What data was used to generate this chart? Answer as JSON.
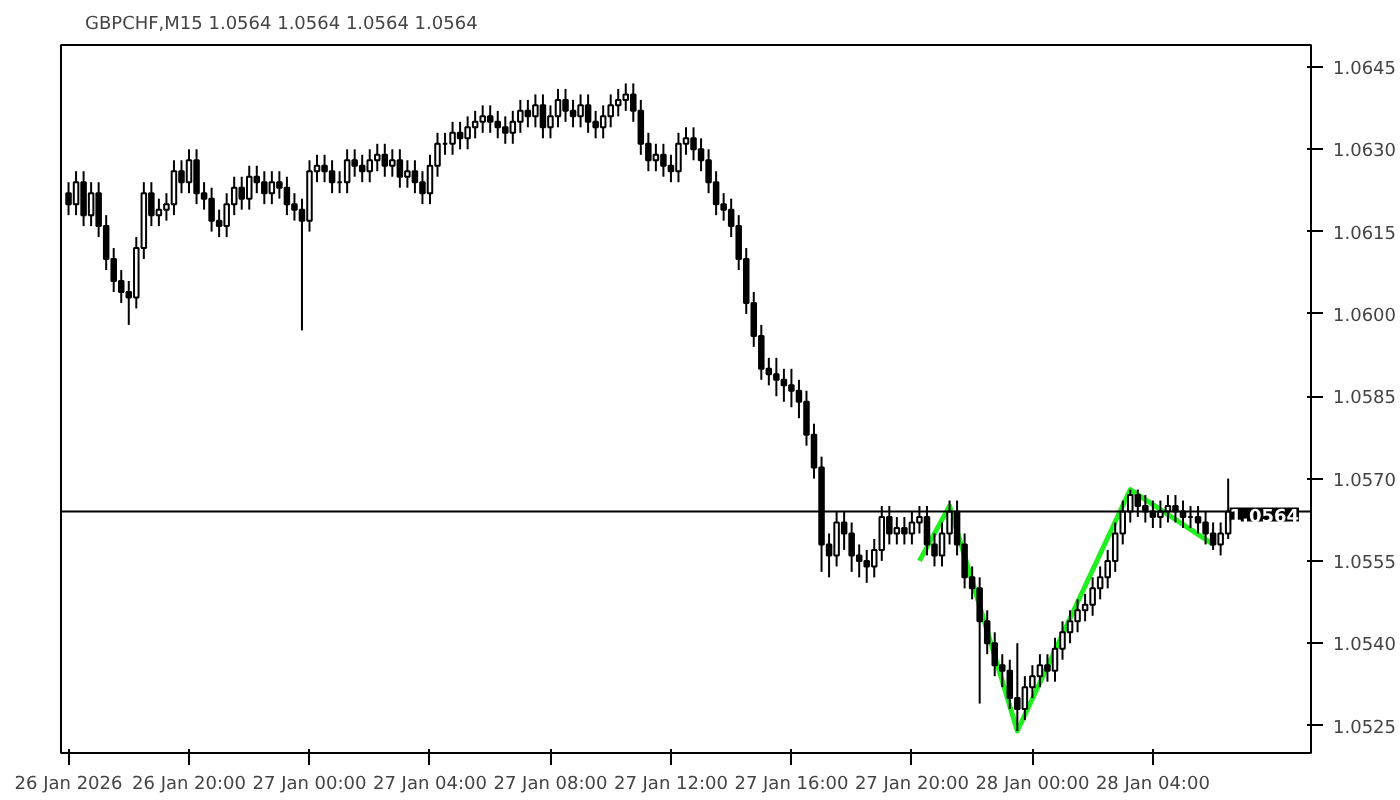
{
  "chart_data": {
    "type": "candlestick",
    "title": "GBPCHF,M15  1.0564 1.0564 1.0564 1.0564",
    "color": "#000000",
    "x": [
      "2026-01-26T16:00",
      "2026-01-26T16:15",
      "2026-01-26T16:30",
      "2026-01-26T16:45",
      "2026-01-26T17:00",
      "2026-01-26T17:15",
      "2026-01-26T17:30",
      "2026-01-26T17:45",
      "2026-01-26T18:00",
      "2026-01-26T18:15",
      "2026-01-26T18:30",
      "2026-01-26T18:45",
      "2026-01-26T19:00",
      "2026-01-26T19:15",
      "2026-01-26T19:30",
      "2026-01-26T19:45",
      "2026-01-26T20:00",
      "2026-01-26T20:15",
      "2026-01-26T20:30",
      "2026-01-26T20:45",
      "2026-01-26T21:00",
      "2026-01-26T21:15",
      "2026-01-26T21:30",
      "2026-01-26T21:45",
      "2026-01-26T22:00",
      "2026-01-26T22:15",
      "2026-01-26T22:30",
      "2026-01-26T22:45",
      "2026-01-26T23:00",
      "2026-01-26T23:15",
      "2026-01-26T23:30",
      "2026-01-26T23:45",
      "2026-01-27T00:00",
      "2026-01-27T00:15",
      "2026-01-27T00:30",
      "2026-01-27T00:45",
      "2026-01-27T01:00",
      "2026-01-27T01:15",
      "2026-01-27T01:30",
      "2026-01-27T01:45",
      "2026-01-27T02:00",
      "2026-01-27T02:15",
      "2026-01-27T02:30",
      "2026-01-27T02:45",
      "2026-01-27T03:00",
      "2026-01-27T03:15",
      "2026-01-27T03:30",
      "2026-01-27T03:45",
      "2026-01-27T04:00",
      "2026-01-27T04:15",
      "2026-01-27T04:30",
      "2026-01-27T04:45",
      "2026-01-27T05:00",
      "2026-01-27T05:15",
      "2026-01-27T05:30",
      "2026-01-27T05:45",
      "2026-01-27T06:00",
      "2026-01-27T06:15",
      "2026-01-27T06:30",
      "2026-01-27T06:45",
      "2026-01-27T07:00",
      "2026-01-27T07:15",
      "2026-01-27T07:30",
      "2026-01-27T07:45",
      "2026-01-27T08:00",
      "2026-01-27T08:15",
      "2026-01-27T08:30",
      "2026-01-27T08:45",
      "2026-01-27T09:00",
      "2026-01-27T09:15",
      "2026-01-27T09:30",
      "2026-01-27T09:45",
      "2026-01-27T10:00",
      "2026-01-27T10:15",
      "2026-01-27T10:30",
      "2026-01-27T10:45",
      "2026-01-27T11:00",
      "2026-01-27T11:15",
      "2026-01-27T11:30",
      "2026-01-27T11:45",
      "2026-01-27T12:00",
      "2026-01-27T12:15",
      "2026-01-27T12:30",
      "2026-01-27T12:45",
      "2026-01-27T13:00",
      "2026-01-27T13:15",
      "2026-01-27T13:30",
      "2026-01-27T13:45",
      "2026-01-27T14:00",
      "2026-01-27T14:15",
      "2026-01-27T14:30",
      "2026-01-27T14:45",
      "2026-01-27T15:00",
      "2026-01-27T15:15",
      "2026-01-27T15:30",
      "2026-01-27T15:45",
      "2026-01-27T16:00",
      "2026-01-27T16:15",
      "2026-01-27T16:30",
      "2026-01-27T16:45",
      "2026-01-27T17:00",
      "2026-01-27T17:15",
      "2026-01-27T17:30",
      "2026-01-27T17:45",
      "2026-01-27T18:00",
      "2026-01-27T18:15",
      "2026-01-27T18:30",
      "2026-01-27T18:45",
      "2026-01-27T19:00",
      "2026-01-27T19:15",
      "2026-01-27T19:30",
      "2026-01-27T19:45",
      "2026-01-27T20:00",
      "2026-01-27T20:15",
      "2026-01-27T20:30",
      "2026-01-27T20:45",
      "2026-01-27T21:00",
      "2026-01-27T21:15",
      "2026-01-27T21:30",
      "2026-01-27T21:45",
      "2026-01-27T22:00",
      "2026-01-27T22:15",
      "2026-01-27T22:30",
      "2026-01-27T22:45",
      "2026-01-27T23:00",
      "2026-01-27T23:15",
      "2026-01-27T23:30",
      "2026-01-27T23:45",
      "2026-01-28T00:00",
      "2026-01-28T00:15",
      "2026-01-28T00:30",
      "2026-01-28T00:45",
      "2026-01-28T01:00",
      "2026-01-28T01:15",
      "2026-01-28T01:30",
      "2026-01-28T01:45",
      "2026-01-28T02:00",
      "2026-01-28T02:15",
      "2026-01-28T02:30",
      "2026-01-28T02:45",
      "2026-01-28T03:00",
      "2026-01-28T03:15",
      "2026-01-28T03:30",
      "2026-01-28T03:45",
      "2026-01-28T04:00",
      "2026-01-28T04:15",
      "2026-01-28T04:30",
      "2026-01-28T04:45",
      "2026-01-28T05:00",
      "2026-01-28T05:15",
      "2026-01-28T05:30",
      "2026-01-28T05:45",
      "2026-01-28T06:00",
      "2026-01-28T06:15",
      "2026-01-28T06:30"
    ],
    "ohlc": [
      [
        1.0622,
        1.0624,
        1.0618,
        1.062
      ],
      [
        1.062,
        1.0626,
        1.0618,
        1.0624
      ],
      [
        1.0624,
        1.0626,
        1.0616,
        1.0618
      ],
      [
        1.0618,
        1.0624,
        1.0616,
        1.0622
      ],
      [
        1.0622,
        1.0624,
        1.0614,
        1.0616
      ],
      [
        1.0616,
        1.0618,
        1.0608,
        1.061
      ],
      [
        1.061,
        1.0612,
        1.0604,
        1.0606
      ],
      [
        1.0606,
        1.0608,
        1.0602,
        1.0604
      ],
      [
        1.0604,
        1.0606,
        1.0598,
        1.0603
      ],
      [
        1.0603,
        1.0614,
        1.0601,
        1.0612
      ],
      [
        1.0612,
        1.0624,
        1.061,
        1.0622
      ],
      [
        1.0622,
        1.0624,
        1.0616,
        1.0618
      ],
      [
        1.0618,
        1.0621,
        1.0616,
        1.0619
      ],
      [
        1.0619,
        1.0622,
        1.0617,
        1.062
      ],
      [
        1.062,
        1.0628,
        1.0618,
        1.0626
      ],
      [
        1.0626,
        1.0628,
        1.0622,
        1.0624
      ],
      [
        1.0624,
        1.063,
        1.0622,
        1.0628
      ],
      [
        1.0628,
        1.063,
        1.062,
        1.0622
      ],
      [
        1.0622,
        1.0624,
        1.0619,
        1.0621
      ],
      [
        1.0621,
        1.0623,
        1.0615,
        1.0617
      ],
      [
        1.0617,
        1.0619,
        1.0614,
        1.0616
      ],
      [
        1.0616,
        1.0622,
        1.0614,
        1.062
      ],
      [
        1.062,
        1.0625,
        1.0618,
        1.0623
      ],
      [
        1.0623,
        1.0625,
        1.0619,
        1.0621
      ],
      [
        1.0621,
        1.0627,
        1.0619,
        1.0625
      ],
      [
        1.0625,
        1.0627,
        1.0622,
        1.0624
      ],
      [
        1.0624,
        1.0626,
        1.062,
        1.0622
      ],
      [
        1.0622,
        1.0626,
        1.062,
        1.0624
      ],
      [
        1.0624,
        1.0626,
        1.0621,
        1.0623
      ],
      [
        1.0623,
        1.0625,
        1.0618,
        1.062
      ],
      [
        1.062,
        1.0622,
        1.0617,
        1.0619
      ],
      [
        1.0619,
        1.0621,
        1.0597,
        1.0617
      ],
      [
        1.0617,
        1.0628,
        1.0615,
        1.0626
      ],
      [
        1.0626,
        1.0629,
        1.0624,
        1.0627
      ],
      [
        1.0627,
        1.0629,
        1.0624,
        1.0626
      ],
      [
        1.0626,
        1.0628,
        1.0622,
        1.0624
      ],
      [
        1.0624,
        1.0626,
        1.0622,
        1.0624
      ],
      [
        1.0624,
        1.063,
        1.0622,
        1.0628
      ],
      [
        1.0628,
        1.063,
        1.0625,
        1.0627
      ],
      [
        1.0627,
        1.0629,
        1.0624,
        1.0626
      ],
      [
        1.0626,
        1.063,
        1.0624,
        1.0628
      ],
      [
        1.0628,
        1.0631,
        1.0626,
        1.0629
      ],
      [
        1.0629,
        1.0631,
        1.0625,
        1.0627
      ],
      [
        1.0627,
        1.063,
        1.0625,
        1.0628
      ],
      [
        1.0628,
        1.063,
        1.0623,
        1.0625
      ],
      [
        1.0625,
        1.0628,
        1.0623,
        1.0626
      ],
      [
        1.0626,
        1.0628,
        1.0622,
        1.0624
      ],
      [
        1.0624,
        1.0626,
        1.062,
        1.0622
      ],
      [
        1.0622,
        1.0629,
        1.062,
        1.0627
      ],
      [
        1.0627,
        1.0633,
        1.0625,
        1.0631
      ],
      [
        1.0631,
        1.0633,
        1.0629,
        1.0631
      ],
      [
        1.0631,
        1.0635,
        1.0629,
        1.0633
      ],
      [
        1.0633,
        1.0635,
        1.063,
        1.0632
      ],
      [
        1.0632,
        1.0636,
        1.063,
        1.0634
      ],
      [
        1.0634,
        1.0637,
        1.0632,
        1.0635
      ],
      [
        1.0635,
        1.0638,
        1.0633,
        1.0636
      ],
      [
        1.0636,
        1.0638,
        1.0633,
        1.0635
      ],
      [
        1.0635,
        1.0637,
        1.0632,
        1.0634
      ],
      [
        1.0634,
        1.0636,
        1.0631,
        1.0633
      ],
      [
        1.0633,
        1.0637,
        1.0631,
        1.0635
      ],
      [
        1.0635,
        1.0639,
        1.0633,
        1.0637
      ],
      [
        1.0637,
        1.0639,
        1.0634,
        1.0636
      ],
      [
        1.0636,
        1.064,
        1.0634,
        1.0638
      ],
      [
        1.0638,
        1.064,
        1.0632,
        1.0634
      ],
      [
        1.0634,
        1.0638,
        1.0632,
        1.0636
      ],
      [
        1.0636,
        1.0641,
        1.0634,
        1.0639
      ],
      [
        1.0639,
        1.0641,
        1.0635,
        1.0637
      ],
      [
        1.0637,
        1.0639,
        1.0634,
        1.0636
      ],
      [
        1.0636,
        1.064,
        1.0634,
        1.0638
      ],
      [
        1.0638,
        1.064,
        1.0633,
        1.0635
      ],
      [
        1.0635,
        1.0637,
        1.0632,
        1.0634
      ],
      [
        1.0634,
        1.0638,
        1.0632,
        1.0636
      ],
      [
        1.0636,
        1.064,
        1.0634,
        1.0638
      ],
      [
        1.0638,
        1.0641,
        1.0636,
        1.0639
      ],
      [
        1.0639,
        1.0642,
        1.0637,
        1.064
      ],
      [
        1.064,
        1.0642,
        1.0635,
        1.0637
      ],
      [
        1.0637,
        1.0639,
        1.0629,
        1.0631
      ],
      [
        1.0631,
        1.0633,
        1.0626,
        1.0628
      ],
      [
        1.0628,
        1.0631,
        1.0626,
        1.0629
      ],
      [
        1.0629,
        1.0631,
        1.0625,
        1.0627
      ],
      [
        1.0627,
        1.0629,
        1.0624,
        1.0626
      ],
      [
        1.0626,
        1.0633,
        1.0624,
        1.0631
      ],
      [
        1.0631,
        1.0634,
        1.0629,
        1.0632
      ],
      [
        1.0632,
        1.0634,
        1.0628,
        1.063
      ],
      [
        1.063,
        1.0632,
        1.0626,
        1.0628
      ],
      [
        1.0628,
        1.063,
        1.0622,
        1.0624
      ],
      [
        1.0624,
        1.0626,
        1.0618,
        1.062
      ],
      [
        1.062,
        1.0622,
        1.0617,
        1.0619
      ],
      [
        1.0619,
        1.0621,
        1.0614,
        1.0616
      ],
      [
        1.0616,
        1.0618,
        1.0608,
        1.061
      ],
      [
        1.061,
        1.0612,
        1.06,
        1.0602
      ],
      [
        1.0602,
        1.0604,
        1.0594,
        1.0596
      ],
      [
        1.0596,
        1.0598,
        1.0588,
        1.059
      ],
      [
        1.059,
        1.0592,
        1.0587,
        1.0589
      ],
      [
        1.0589,
        1.0592,
        1.0585,
        1.0588
      ],
      [
        1.0588,
        1.059,
        1.0584,
        1.0587
      ],
      [
        1.0587,
        1.059,
        1.0583,
        1.0586
      ],
      [
        1.0586,
        1.0588,
        1.0581,
        1.0584
      ],
      [
        1.0584,
        1.0586,
        1.0576,
        1.0578
      ],
      [
        1.0578,
        1.058,
        1.057,
        1.0572
      ],
      [
        1.0572,
        1.0574,
        1.0553,
        1.0558
      ],
      [
        1.0558,
        1.056,
        1.0552,
        1.0556
      ],
      [
        1.0556,
        1.0564,
        1.0554,
        1.0562
      ],
      [
        1.0562,
        1.0564,
        1.0557,
        1.056
      ],
      [
        1.056,
        1.0562,
        1.0553,
        1.0556
      ],
      [
        1.0556,
        1.0558,
        1.0552,
        1.0555
      ],
      [
        1.0555,
        1.0557,
        1.0551,
        1.0554
      ],
      [
        1.0554,
        1.0559,
        1.0552,
        1.0557
      ],
      [
        1.0557,
        1.0565,
        1.0555,
        1.0563
      ],
      [
        1.0563,
        1.0565,
        1.0558,
        1.056
      ],
      [
        1.056,
        1.0563,
        1.0558,
        1.0561
      ],
      [
        1.0561,
        1.0563,
        1.0558,
        1.056
      ],
      [
        1.056,
        1.0564,
        1.0558,
        1.0562
      ],
      [
        1.0562,
        1.0565,
        1.056,
        1.0563
      ],
      [
        1.0563,
        1.0565,
        1.0556,
        1.0558
      ],
      [
        1.0558,
        1.056,
        1.0554,
        1.0556
      ],
      [
        1.0556,
        1.0562,
        1.0554,
        1.056
      ],
      [
        1.056,
        1.0566,
        1.0558,
        1.0564
      ],
      [
        1.0564,
        1.0566,
        1.0556,
        1.0558
      ],
      [
        1.0558,
        1.056,
        1.055,
        1.0552
      ],
      [
        1.0552,
        1.0554,
        1.0548,
        1.055
      ],
      [
        1.055,
        1.0552,
        1.0529,
        1.0544
      ],
      [
        1.0544,
        1.0546,
        1.0538,
        1.054
      ],
      [
        1.054,
        1.0542,
        1.0534,
        1.0536
      ],
      [
        1.0536,
        1.0538,
        1.0532,
        1.0535
      ],
      [
        1.0535,
        1.0537,
        1.0528,
        1.053
      ],
      [
        1.053,
        1.054,
        1.0524,
        1.0528
      ],
      [
        1.0528,
        1.0534,
        1.0526,
        1.0532
      ],
      [
        1.0532,
        1.0536,
        1.053,
        1.0534
      ],
      [
        1.0534,
        1.0538,
        1.0532,
        1.0536
      ],
      [
        1.0536,
        1.0538,
        1.0533,
        1.0535
      ],
      [
        1.0535,
        1.0541,
        1.0533,
        1.0539
      ],
      [
        1.0539,
        1.0544,
        1.0537,
        1.0542
      ],
      [
        1.0542,
        1.0546,
        1.054,
        1.0544
      ],
      [
        1.0544,
        1.0548,
        1.0542,
        1.0546
      ],
      [
        1.0546,
        1.0549,
        1.0544,
        1.0547
      ],
      [
        1.0547,
        1.0552,
        1.0545,
        1.055
      ],
      [
        1.055,
        1.0554,
        1.0548,
        1.0552
      ],
      [
        1.0552,
        1.0557,
        1.055,
        1.0555
      ],
      [
        1.0555,
        1.0562,
        1.0553,
        1.056
      ],
      [
        1.056,
        1.0566,
        1.0558,
        1.0564
      ],
      [
        1.0564,
        1.0568,
        1.0562,
        1.0567
      ],
      [
        1.0567,
        1.0568,
        1.0563,
        1.0565
      ],
      [
        1.0565,
        1.0567,
        1.0562,
        1.0564
      ],
      [
        1.0564,
        1.0566,
        1.0561,
        1.0563
      ],
      [
        1.0563,
        1.0566,
        1.0561,
        1.0564
      ],
      [
        1.0564,
        1.0567,
        1.0562,
        1.0565
      ],
      [
        1.0565,
        1.0567,
        1.0562,
        1.0564
      ],
      [
        1.0564,
        1.0566,
        1.0561,
        1.0563
      ],
      [
        1.0563,
        1.0565,
        1.0561,
        1.0563
      ],
      [
        1.0563,
        1.0565,
        1.056,
        1.0562
      ],
      [
        1.0562,
        1.0564,
        1.0558,
        1.056
      ],
      [
        1.056,
        1.0562,
        1.0557,
        1.0558
      ],
      [
        1.0558,
        1.0562,
        1.0556,
        1.056
      ],
      [
        1.056,
        1.057,
        1.0559,
        1.0564
      ]
    ],
    "series": [
      {
        "type": "line",
        "color": "#22ee22",
        "x": [
          "2026-01-27T20:15",
          "2026-01-27T21:15",
          "2026-01-27T23:30",
          "2026-01-28T03:15",
          "2026-01-28T06:00"
        ],
        "values": [
          1.0555,
          1.0565,
          1.0524,
          1.0568,
          1.0558
        ]
      }
    ],
    "ref_lines": [
      {
        "axis": "y",
        "value": 1.0564,
        "label": "1.0564",
        "color": "#000000"
      }
    ],
    "xlim": [
      "2026-01-26T15:45",
      "2026-01-28T09:15"
    ],
    "xticks": [
      {
        "value": "2026-01-26T16:00",
        "label": "26 Jan 2026"
      },
      {
        "value": "2026-01-26T20:00",
        "label": "26 Jan 20:00"
      },
      {
        "value": "2026-01-27T00:00",
        "label": "27 Jan 00:00"
      },
      {
        "value": "2026-01-27T04:00",
        "label": "27 Jan 04:00"
      },
      {
        "value": "2026-01-27T08:00",
        "label": "27 Jan 08:00"
      },
      {
        "value": "2026-01-27T12:00",
        "label": "27 Jan 12:00"
      },
      {
        "value": "2026-01-27T16:00",
        "label": "27 Jan 16:00"
      },
      {
        "value": "2026-01-27T20:00",
        "label": "27 Jan 20:00"
      },
      {
        "value": "2026-01-28T00:00",
        "label": "28 Jan 00:00"
      },
      {
        "value": "2026-01-28T04:00",
        "label": "28 Jan 04:00"
      }
    ],
    "ylim": [
      1.052,
      1.0649
    ],
    "yticks": [
      {
        "value": 1.0525,
        "label": "1.0525"
      },
      {
        "value": 1.054,
        "label": "1.0540"
      },
      {
        "value": 1.0555,
        "label": "1.0555"
      },
      {
        "value": 1.057,
        "label": "1.0570"
      },
      {
        "value": 1.0585,
        "label": "1.0585"
      },
      {
        "value": 1.06,
        "label": "1.0600"
      },
      {
        "value": 1.0615,
        "label": "1.0615"
      },
      {
        "value": 1.063,
        "label": "1.0630"
      },
      {
        "value": 1.0645,
        "label": "1.0645"
      }
    ],
    "grid": false
  }
}
